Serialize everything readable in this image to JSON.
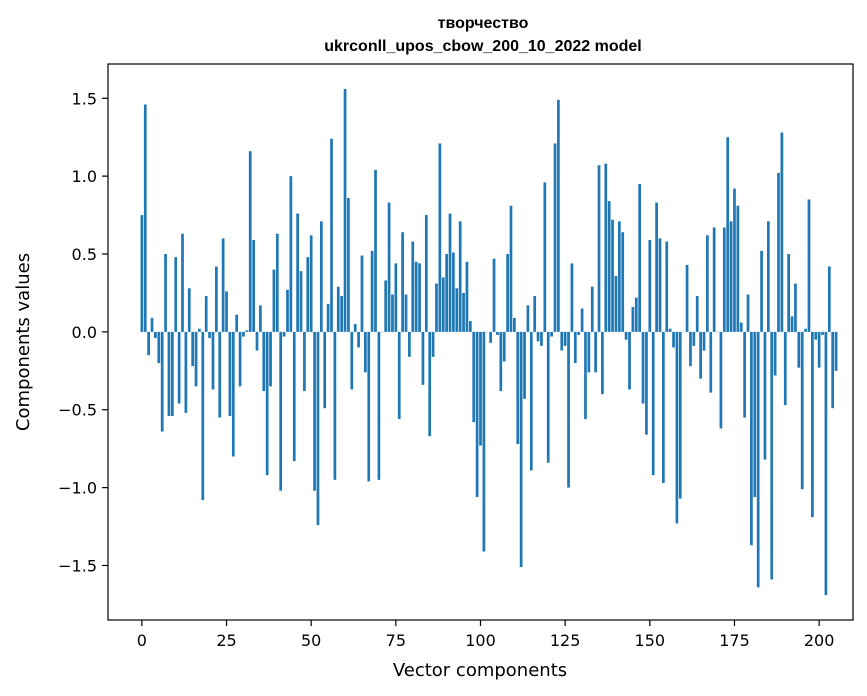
{
  "chart_data": {
    "type": "bar",
    "title": "творчество",
    "subtitle": "ukrconll_upos_cbow_200_10_2022 model",
    "xlabel": "Vector components",
    "ylabel": "Components values",
    "xlim": [
      -10,
      210
    ],
    "ylim": [
      -1.85,
      1.72
    ],
    "xticks": [
      0,
      25,
      50,
      75,
      100,
      125,
      150,
      175,
      200
    ],
    "yticks": [
      -1.5,
      -1.0,
      -0.5,
      0.0,
      0.5,
      1.0,
      1.5
    ],
    "bar_color": "#1f77b4",
    "values": [
      0.75,
      1.46,
      -0.15,
      0.09,
      -0.04,
      -0.2,
      -0.64,
      0.5,
      -0.54,
      -0.54,
      0.48,
      -0.46,
      0.63,
      -0.52,
      0.28,
      -0.22,
      -0.35,
      0.02,
      -1.08,
      0.23,
      -0.04,
      -0.37,
      0.42,
      -0.55,
      0.6,
      0.26,
      -0.54,
      -0.8,
      0.11,
      -0.35,
      -0.03,
      0.01,
      1.16,
      0.59,
      -0.12,
      0.17,
      -0.38,
      -0.92,
      -0.35,
      0.4,
      0.63,
      -1.02,
      -0.03,
      0.27,
      1.0,
      -0.83,
      0.76,
      0.39,
      -0.38,
      0.48,
      0.62,
      -1.02,
      -1.24,
      0.71,
      -0.49,
      0.18,
      1.24,
      -0.95,
      0.29,
      0.23,
      1.56,
      0.86,
      -0.37,
      0.05,
      -0.1,
      0.49,
      -0.26,
      -0.96,
      0.52,
      1.04,
      -0.95,
      0.0,
      0.33,
      0.83,
      0.24,
      0.44,
      -0.56,
      0.64,
      0.24,
      -0.16,
      0.58,
      0.45,
      0.44,
      -0.34,
      0.75,
      -0.67,
      -0.16,
      0.31,
      1.21,
      0.35,
      0.5,
      0.76,
      0.51,
      0.28,
      0.71,
      0.25,
      0.45,
      0.07,
      -0.58,
      -1.06,
      -0.73,
      -1.41,
      0.0,
      -0.07,
      0.47,
      -0.02,
      -0.38,
      -0.19,
      0.5,
      0.81,
      0.09,
      -0.72,
      -1.51,
      -0.43,
      0.17,
      -0.89,
      0.23,
      -0.06,
      -0.09,
      0.96,
      -0.84,
      -0.03,
      1.21,
      1.49,
      -0.12,
      -0.09,
      -1.0,
      0.44,
      -0.2,
      -0.02,
      0.15,
      -0.56,
      -0.26,
      0.29,
      -0.26,
      1.07,
      -0.4,
      1.08,
      0.84,
      0.72,
      0.36,
      0.71,
      0.64,
      -0.05,
      -0.37,
      0.16,
      0.22,
      0.95,
      -0.46,
      -0.66,
      0.59,
      -0.92,
      0.83,
      0.6,
      -0.97,
      0.58,
      0.02,
      -0.1,
      -1.23,
      -1.07,
      0.0,
      0.43,
      -0.22,
      -0.09,
      0.23,
      -0.3,
      -0.12,
      0.62,
      -0.39,
      0.67,
      0.0,
      -0.62,
      0.67,
      1.25,
      0.71,
      0.92,
      0.81,
      0.06,
      -0.55,
      0.24,
      -1.37,
      -1.06,
      -1.64,
      0.52,
      -0.82,
      0.71,
      -1.59,
      -0.28,
      1.02,
      1.28,
      -0.47,
      0.5,
      0.1,
      0.31,
      -0.23,
      -1.01,
      0.02,
      0.85,
      -1.19,
      -0.05,
      -0.23,
      -0.02,
      -1.69,
      0.42,
      -0.49,
      -0.25
    ]
  }
}
